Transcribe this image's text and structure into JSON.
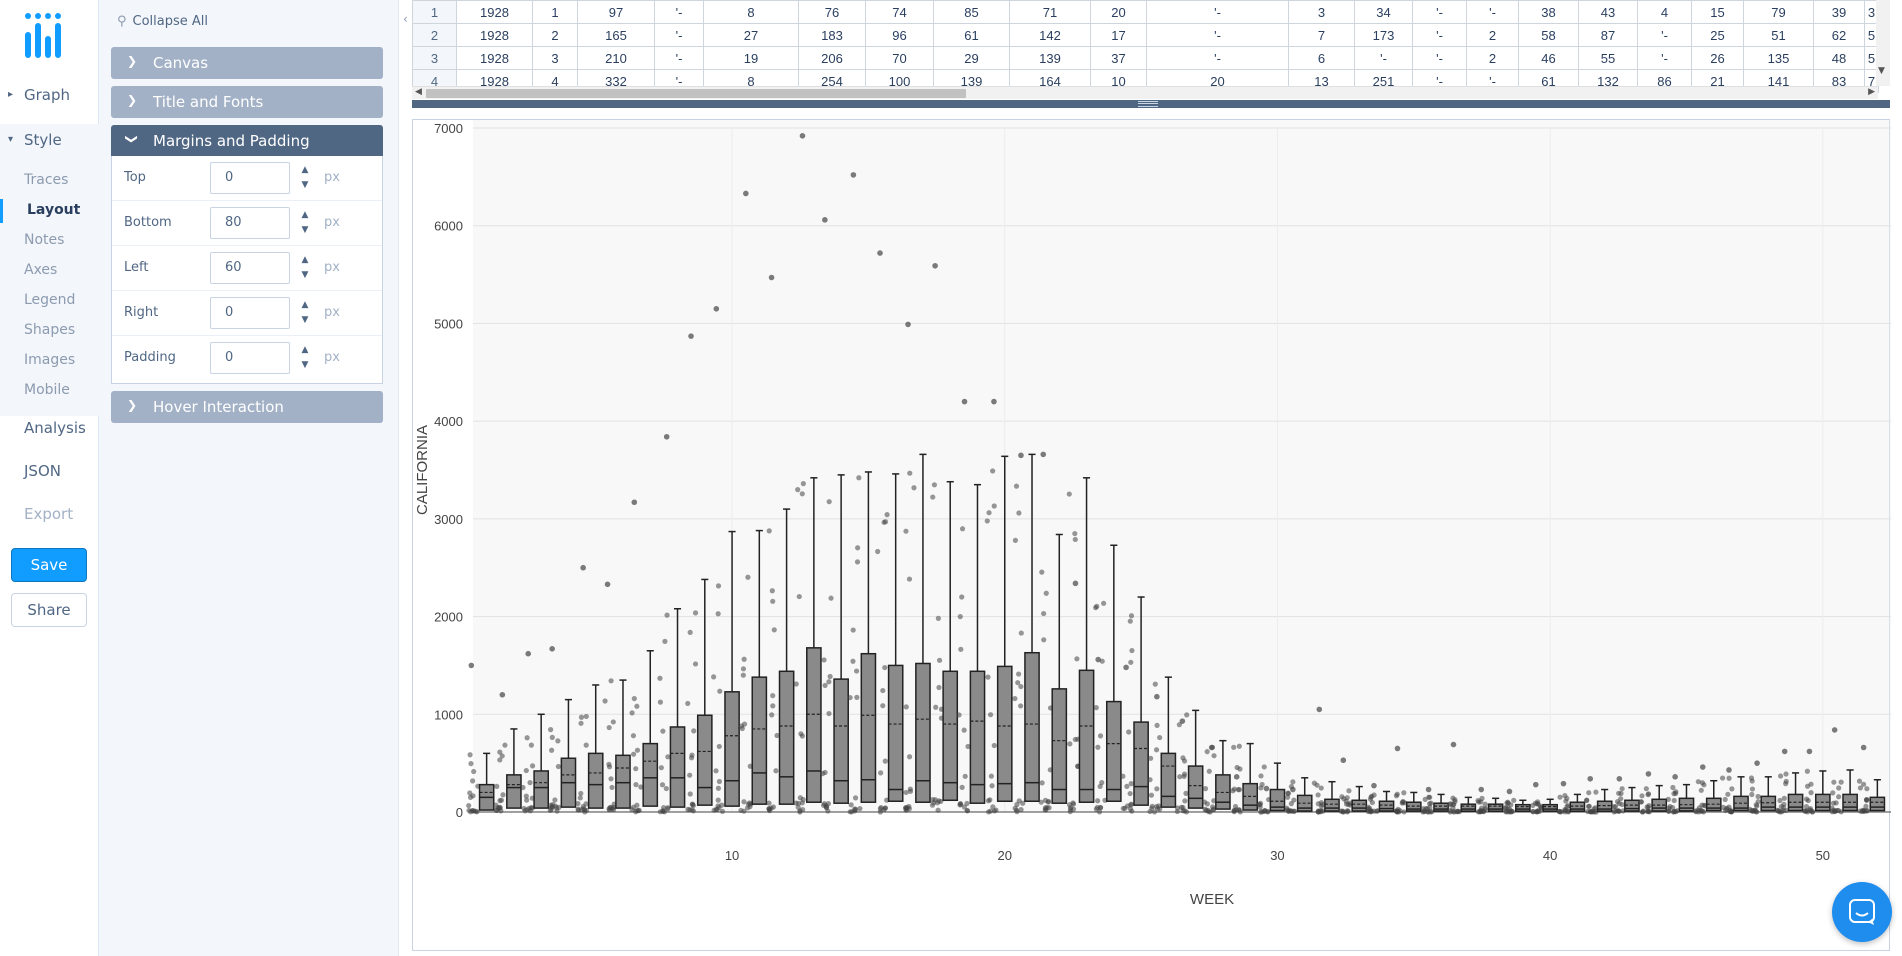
{
  "nav": {
    "groups": [
      {
        "label": "Graph",
        "caret": "▸"
      },
      {
        "label": "Style",
        "caret": "▾"
      }
    ],
    "style_items": [
      "Traces",
      "Layout",
      "Notes",
      "Axes",
      "Legend",
      "Shapes",
      "Images",
      "Mobile"
    ],
    "active_item": "Layout",
    "main_items": [
      "Analysis",
      "JSON",
      "Export"
    ],
    "save_label": "Save",
    "share_label": "Share"
  },
  "panel": {
    "collapse_all_label": "Collapse All",
    "collapse_icon": "pin-icon",
    "folds": [
      {
        "label": "Canvas",
        "open": false
      },
      {
        "label": "Title and Fonts",
        "open": false
      },
      {
        "label": "Margins and Padding",
        "open": true
      },
      {
        "label": "Hover Interaction",
        "open": false
      }
    ],
    "margins": [
      {
        "label": "Top",
        "value": "0",
        "unit": "px"
      },
      {
        "label": "Bottom",
        "value": "80",
        "unit": "px"
      },
      {
        "label": "Left",
        "value": "60",
        "unit": "px"
      },
      {
        "label": "Right",
        "value": "0",
        "unit": "px"
      },
      {
        "label": "Padding",
        "value": "0",
        "unit": "px"
      }
    ]
  },
  "grid": {
    "rows": [
      [
        "1",
        "1928",
        "1",
        "97",
        "'-",
        "8",
        "76",
        "74",
        "85",
        "71",
        "20",
        "'-",
        "3",
        "34",
        "'-",
        "'-",
        "38",
        "43",
        "4",
        "15",
        "79",
        "39",
        "3"
      ],
      [
        "2",
        "1928",
        "2",
        "165",
        "'-",
        "27",
        "183",
        "96",
        "61",
        "142",
        "17",
        "'-",
        "7",
        "173",
        "'-",
        "2",
        "58",
        "87",
        "'-",
        "25",
        "51",
        "62",
        "5"
      ],
      [
        "3",
        "1928",
        "3",
        "210",
        "'-",
        "19",
        "206",
        "70",
        "29",
        "139",
        "37",
        "'-",
        "6",
        "'-",
        "'-",
        "2",
        "46",
        "55",
        "'-",
        "26",
        "135",
        "48",
        "5"
      ],
      [
        "4",
        "1928",
        "4",
        "332",
        "'-",
        "8",
        "254",
        "100",
        "139",
        "164",
        "10",
        "20",
        "13",
        "251",
        "'-",
        "'-",
        "61",
        "132",
        "86",
        "21",
        "141",
        "83",
        "7"
      ]
    ]
  },
  "chart_data": {
    "type": "box",
    "xlabel": "WEEK",
    "ylabel": "CALIFORNIA",
    "xlim": [
      0.5,
      52.5
    ],
    "ylim": [
      0,
      7000
    ],
    "xticks": [
      10,
      20,
      30,
      40,
      50
    ],
    "yticks": [
      0,
      1000,
      2000,
      3000,
      4000,
      5000,
      6000,
      7000
    ],
    "boxpoints": "all",
    "boxmean": true,
    "color": "#444444",
    "grid": true,
    "weeks": [
      1,
      2,
      3,
      4,
      5,
      6,
      7,
      8,
      9,
      10,
      11,
      12,
      13,
      14,
      15,
      16,
      17,
      18,
      19,
      20,
      21,
      22,
      23,
      24,
      25,
      26,
      27,
      28,
      29,
      30,
      31,
      32,
      33,
      34,
      35,
      36,
      37,
      38,
      39,
      40,
      41,
      42,
      43,
      44,
      45,
      46,
      47,
      48,
      49,
      50,
      51,
      52
    ],
    "q1": [
      20,
      40,
      40,
      50,
      40,
      40,
      60,
      50,
      70,
      60,
      80,
      80,
      100,
      90,
      100,
      110,
      100,
      120,
      90,
      110,
      110,
      90,
      100,
      110,
      70,
      50,
      40,
      30,
      20,
      15,
      10,
      10,
      10,
      10,
      10,
      10,
      8,
      8,
      8,
      8,
      8,
      8,
      10,
      10,
      12,
      15,
      15,
      15,
      15,
      15,
      15,
      15
    ],
    "median": [
      150,
      250,
      250,
      300,
      280,
      300,
      350,
      350,
      250,
      320,
      400,
      360,
      420,
      320,
      330,
      230,
      320,
      300,
      280,
      290,
      300,
      230,
      230,
      230,
      260,
      160,
      140,
      100,
      70,
      50,
      40,
      40,
      40,
      35,
      30,
      30,
      30,
      30,
      30,
      30,
      30,
      30,
      35,
      40,
      40,
      40,
      40,
      50,
      50,
      50,
      50,
      50
    ],
    "mean": [
      200,
      280,
      300,
      380,
      400,
      450,
      520,
      600,
      620,
      780,
      850,
      880,
      1000,
      880,
      990,
      900,
      950,
      900,
      930,
      880,
      900,
      730,
      880,
      700,
      650,
      470,
      270,
      200,
      160,
      110,
      90,
      80,
      80,
      70,
      60,
      60,
      60,
      60,
      55,
      55,
      60,
      65,
      70,
      70,
      75,
      80,
      90,
      95,
      100,
      100,
      100,
      100
    ],
    "q3": [
      280,
      380,
      420,
      550,
      600,
      580,
      700,
      870,
      990,
      1230,
      1380,
      1440,
      1680,
      1360,
      1620,
      1500,
      1520,
      1440,
      1440,
      1490,
      1630,
      1260,
      1450,
      1130,
      920,
      600,
      470,
      380,
      290,
      230,
      170,
      130,
      120,
      110,
      100,
      90,
      80,
      80,
      75,
      75,
      100,
      110,
      120,
      130,
      140,
      140,
      160,
      160,
      180,
      180,
      180,
      150
    ],
    "upper_fence": [
      600,
      850,
      1000,
      1150,
      1300,
      1350,
      1650,
      2080,
      2380,
      2870,
      2880,
      3100,
      3420,
      3450,
      3480,
      3460,
      3660,
      3380,
      3350,
      3640,
      3660,
      2840,
      3420,
      2730,
      2200,
      1380,
      1040,
      730,
      700,
      500,
      350,
      310,
      260,
      210,
      200,
      180,
      150,
      140,
      120,
      130,
      180,
      230,
      250,
      270,
      280,
      320,
      360,
      360,
      400,
      420,
      430,
      330
    ],
    "max_outlier": [
      1500,
      1200,
      1620,
      1670,
      2500,
      2330,
      3170,
      3840,
      4870,
      5150,
      6330,
      5470,
      6920,
      6060,
      6520,
      5720,
      4990,
      5590,
      4200,
      4200,
      3650,
      3660,
      2340,
      1560,
      1480,
      1180,
      930,
      660,
      360,
      240,
      230,
      1050,
      530,
      270,
      650,
      230,
      690,
      230,
      210,
      280,
      290,
      340,
      340,
      390,
      360,
      460,
      430,
      500,
      620,
      620,
      840,
      660
    ]
  }
}
